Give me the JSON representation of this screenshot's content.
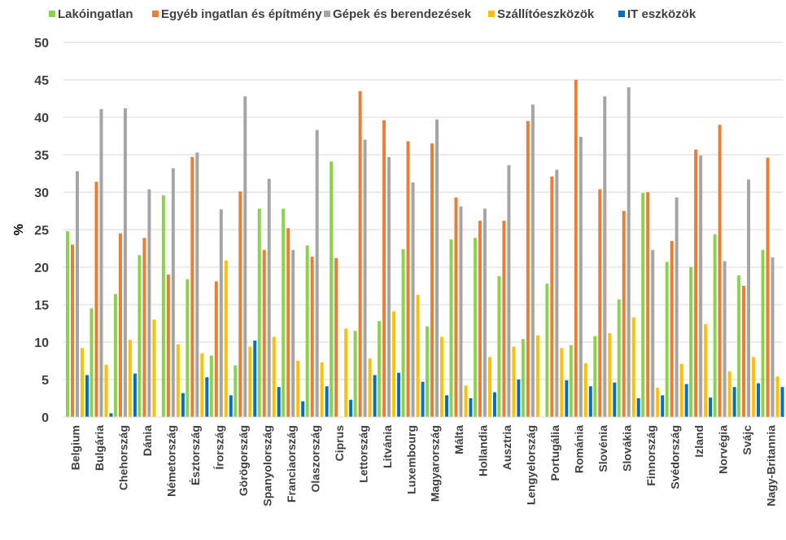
{
  "chart_data": {
    "type": "bar",
    "title": "",
    "xlabel": "",
    "ylabel": "%",
    "ylim": [
      0,
      50
    ],
    "yticks": [
      0,
      5,
      10,
      15,
      20,
      25,
      30,
      35,
      40,
      45,
      50
    ],
    "grid": true,
    "legend_position": "top",
    "categories": [
      "Belgium",
      "Bulgária",
      "Chehország",
      "Dánia",
      "Németország",
      "Észtország",
      "Írország",
      "Görögország",
      "Spanyolország",
      "Franciaország",
      "Olaszország",
      "Ciprus",
      "Lettország",
      "Litvánia",
      "Luxembourg",
      "Magyarország",
      "Málta",
      "Hollandia",
      "Ausztria",
      "Lengyelország",
      "Portugália",
      "Románia",
      "Slovénia",
      "Slovákia",
      "Finnország",
      "Svédország",
      "Izland",
      "Norvégia",
      "Svájc",
      "Nagy-Britannia"
    ],
    "series": [
      {
        "name": "Lakóingatlan",
        "color": "#8CD24A",
        "values": [
          24.8,
          14.5,
          16.4,
          21.6,
          29.6,
          18.4,
          8.2,
          6.9,
          27.8,
          27.8,
          22.9,
          34.1,
          11.5,
          12.8,
          22.4,
          12.1,
          23.7,
          23.9,
          18.8,
          10.4,
          17.8,
          9.6,
          10.8,
          15.7,
          29.9,
          20.7,
          20.0,
          24.4,
          18.9,
          22.3
        ]
      },
      {
        "name": "Egyéb ingatlan és építmény",
        "color": "#ED7D31",
        "values": [
          23.0,
          31.4,
          24.5,
          23.9,
          19.0,
          34.7,
          18.1,
          30.1,
          22.3,
          25.2,
          21.4,
          21.2,
          43.5,
          39.6,
          36.8,
          36.5,
          29.3,
          26.2,
          26.2,
          39.5,
          32.1,
          45.0,
          30.4,
          27.5,
          30.0,
          23.5,
          35.7,
          39.0,
          17.5,
          34.6
        ]
      },
      {
        "name": "Gépek és berendezések",
        "color": "#A5A5A5",
        "values": [
          32.8,
          41.1,
          41.2,
          30.4,
          33.2,
          35.3,
          27.7,
          42.8,
          31.8,
          22.3,
          38.3,
          0,
          37.0,
          34.7,
          31.3,
          39.7,
          28.1,
          27.8,
          33.6,
          41.7,
          33.0,
          37.4,
          42.8,
          44.0,
          22.3,
          29.3,
          34.9,
          20.8,
          31.7,
          21.3
        ]
      },
      {
        "name": "Szállítóeszközök",
        "color": "#FFC000",
        "values": [
          9.2,
          7.0,
          10.3,
          13.0,
          9.7,
          8.5,
          20.9,
          9.4,
          10.7,
          7.5,
          7.3,
          11.8,
          7.8,
          14.1,
          16.3,
          10.7,
          4.2,
          8.0,
          9.4,
          10.9,
          9.2,
          7.2,
          11.2,
          13.3,
          3.9,
          7.1,
          12.4,
          6.1,
          8.0,
          5.4
        ]
      },
      {
        "name": "IT eszközök",
        "color": "#0070C0",
        "values": [
          5.6,
          0.5,
          5.8,
          0,
          3.2,
          5.3,
          2.9,
          10.2,
          4.0,
          2.1,
          4.1,
          2.3,
          5.6,
          5.9,
          4.7,
          2.9,
          2.5,
          3.3,
          5.0,
          0,
          4.9,
          4.1,
          4.6,
          2.5,
          2.9,
          4.4,
          2.6,
          4.0,
          4.5,
          4.0
        ]
      }
    ]
  }
}
